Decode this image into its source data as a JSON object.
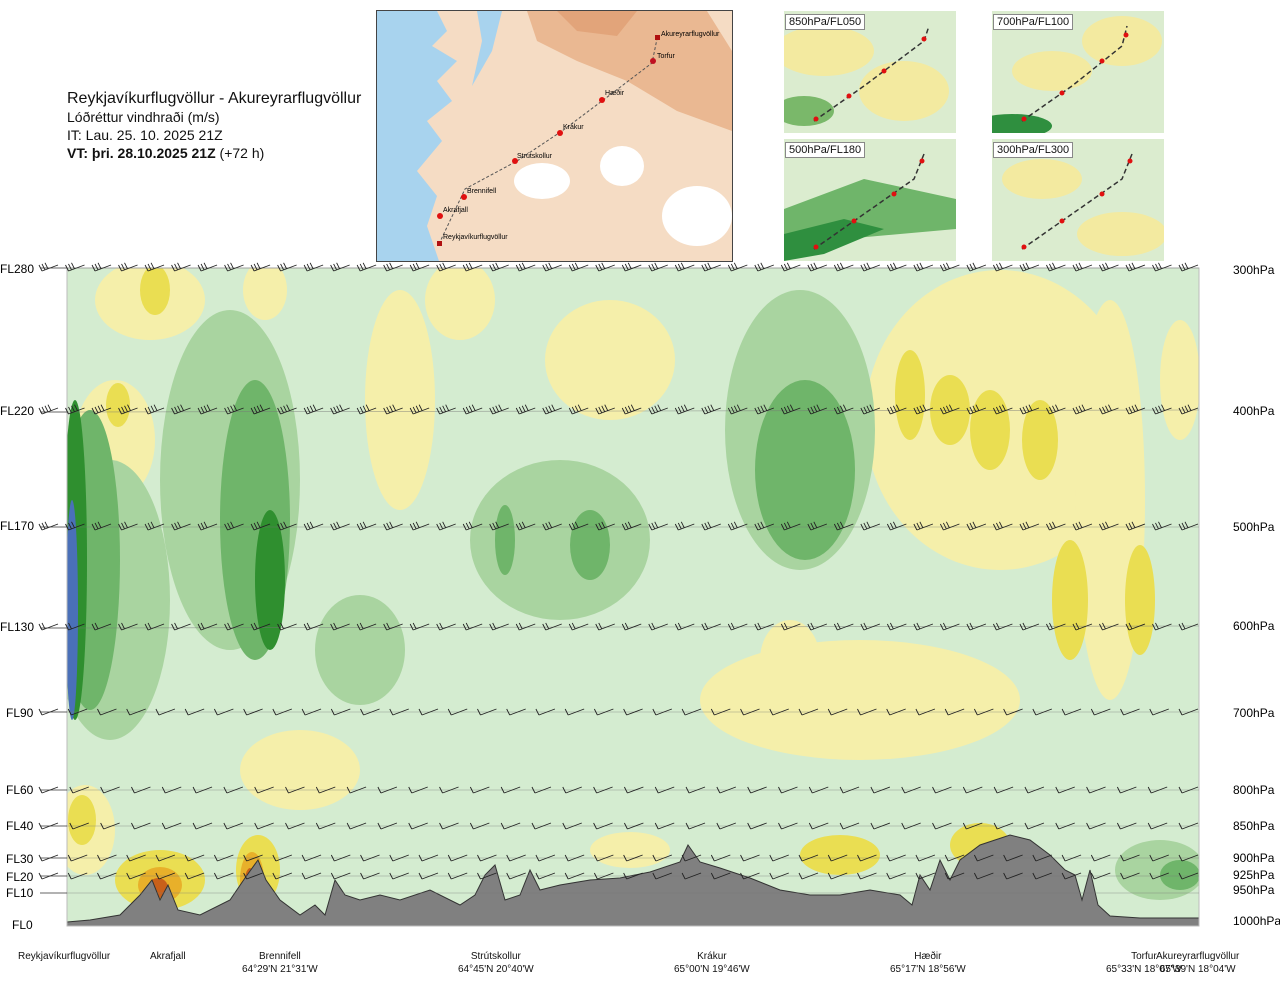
{
  "header": {
    "title": "Reykjavíkurflugvöllur - Akureyrarflugvöllur",
    "subtitle": "Lóðréttur vindhraði (m/s)",
    "issue_time": "IT: Lau. 25. 10. 2025 21Z",
    "valid_time_bold": "VT: þri. 28.10.2025 21Z",
    "valid_time_offset": "(+72 h)"
  },
  "route_map": {
    "points": [
      {
        "name": "Akureyrarflugvöllur"
      },
      {
        "name": "Torfur"
      },
      {
        "name": "Hæðir"
      },
      {
        "name": "Krákur"
      },
      {
        "name": "Strútskollur"
      },
      {
        "name": "Brennifell"
      },
      {
        "name": "Akrafjall"
      },
      {
        "name": "Reykjavíkurflugvöllur"
      }
    ]
  },
  "mini_maps": [
    {
      "label": "850hPa/FL050"
    },
    {
      "label": "700hPa/FL100"
    },
    {
      "label": "500hPa/FL180"
    },
    {
      "label": "300hPa/FL300"
    }
  ],
  "chart_data": {
    "type": "heatmap",
    "title": "Reykjavíkurflugvöllur - Akureyrarflugvöllur",
    "variable": "Lóðréttur vindhraði (m/s)",
    "y_left_ticks": [
      "FL280",
      "FL220",
      "FL170",
      "FL130",
      "FL90",
      "FL60",
      "FL40",
      "FL30",
      "FL20",
      "FL10",
      "FL0"
    ],
    "y_right_ticks": [
      "300hPa",
      "400hPa",
      "500hPa",
      "600hPa",
      "700hPa",
      "800hPa",
      "850hPa",
      "900hPa",
      "925hPa",
      "950hPa",
      "1000hPa"
    ],
    "x_stations": [
      {
        "name": "Reykjavíkurflugvöllur",
        "coord": "",
        "x_frac": 0.0
      },
      {
        "name": "Akrafjall",
        "coord": "",
        "x_frac": 0.09
      },
      {
        "name": "Brennifell",
        "coord": "64°29'N 21°31'W",
        "x_frac": 0.185
      },
      {
        "name": "Strútskollur",
        "coord": "64°45'N 20°40'W",
        "x_frac": 0.378
      },
      {
        "name": "Krákur",
        "coord": "65°00'N 19°46'W",
        "x_frac": 0.572
      },
      {
        "name": "Hæðir",
        "coord": "65°17'N 18°56'W",
        "x_frac": 0.762
      },
      {
        "name": "Torfur",
        "coord": "65°33'N 18°07'W",
        "x_frac": 0.945
      },
      {
        "name": "Akureyrarflugvöllur",
        "coord": "65°39'N 18°04'W",
        "x_frac": 1.0
      }
    ],
    "colors": {
      "strong_down": "#2f8f2f",
      "mod_down": "#6fb56a",
      "weak_down": "#a9d4a0",
      "very_weak_down": "#d4ecd0",
      "neutral": "#fbfbe8",
      "weak_up": "#f5efaa",
      "mod_up": "#eade52",
      "strong_up": "#e8b02a",
      "very_strong_up": "#c8601a",
      "extreme": "#7a2a10",
      "terrain": "#808080",
      "blue_edge": "#4a70b8"
    }
  }
}
